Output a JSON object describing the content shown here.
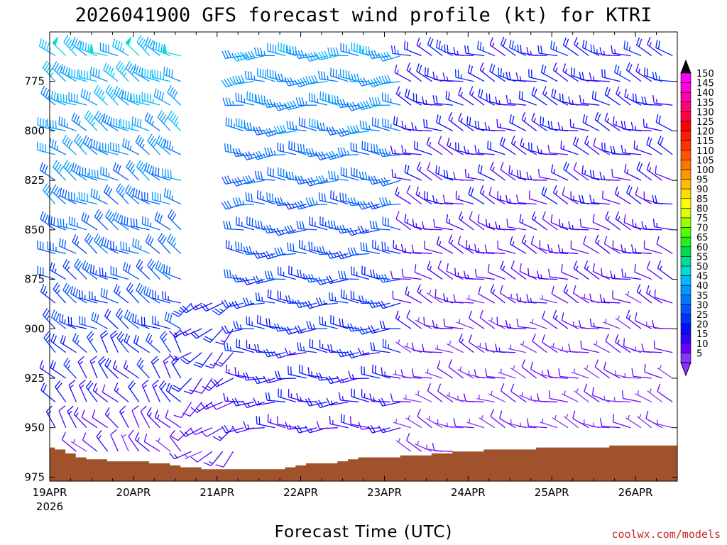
{
  "chart_data": {
    "type": "wind-barb-profile",
    "title": "2026041900 GFS forecast wind profile (kt) for KTRI",
    "xlabel": "Forecast Time (UTC)",
    "ylabel": "",
    "credit": "coolwx.com/models",
    "x_year_label": "2026",
    "x_ticks": [
      "19APR",
      "20APR",
      "21APR",
      "22APR",
      "23APR",
      "24APR",
      "25APR",
      "26APR"
    ],
    "x_range_days": [
      0,
      7.5
    ],
    "y_ticks": [
      775,
      800,
      825,
      850,
      875,
      900,
      925,
      950,
      975
    ],
    "y_range_hpa": [
      750,
      977
    ],
    "levels_hpa": [
      762,
      775,
      787,
      800,
      812,
      825,
      837,
      850,
      862,
      875,
      887,
      900,
      912,
      925,
      937,
      950,
      962
    ],
    "times_days": [
      0,
      0.125,
      0.25,
      0.375,
      0.5,
      0.625,
      0.75,
      0.875,
      1,
      1.125,
      1.25,
      1.375,
      1.5,
      1.625,
      1.75,
      1.875,
      2,
      2.125,
      2.25,
      2.375,
      2.5,
      2.625,
      2.75,
      2.875,
      3,
      3.125,
      3.25,
      3.375,
      3.5,
      3.625,
      3.75,
      3.875,
      4,
      4.125,
      4.25,
      4.375,
      4.5,
      4.625,
      4.75,
      4.875,
      5,
      5.125,
      5.25,
      5.375,
      5.5,
      5.625,
      5.75,
      5.875,
      6,
      6.125,
      6.25,
      6.375,
      6.5,
      6.625,
      6.75,
      6.875,
      7,
      7.125,
      7.25,
      7.375
    ],
    "surface_pressure_hpa": [
      960,
      961,
      963,
      965,
      966,
      966,
      967,
      967,
      967,
      967,
      968,
      968,
      969,
      970,
      970,
      971,
      971,
      971,
      971,
      971,
      971,
      971,
      971,
      970,
      969,
      968,
      968,
      968,
      967,
      966,
      965,
      965,
      965,
      965,
      964,
      964,
      964,
      963,
      963,
      962,
      962,
      962,
      961,
      961,
      961,
      961,
      961,
      960,
      960,
      960,
      960,
      960,
      960,
      960,
      959,
      959,
      959,
      959,
      959,
      959
    ],
    "wind_regimes": [
      {
        "t_from": 0,
        "t_to": 1.6,
        "level_from": 762,
        "level_to": 900,
        "speed_kt": [
          25,
          45
        ],
        "dir_deg": 300
      },
      {
        "t_from": 0,
        "t_to": 1.6,
        "level_from": 900,
        "level_to": 962,
        "speed_kt": [
          10,
          25
        ],
        "dir_deg": 320
      },
      {
        "t_from": 1.6,
        "t_to": 2.2,
        "level_from": 887,
        "level_to": 962,
        "speed_kt": [
          10,
          20
        ],
        "dir_deg": 230
      },
      {
        "t_from": 2.2,
        "t_to": 4.2,
        "level_from": 762,
        "level_to": 950,
        "speed_kt": [
          15,
          40
        ],
        "dir_deg": 270
      },
      {
        "t_from": 4.2,
        "t_to": 7.5,
        "level_from": 762,
        "level_to": 962,
        "speed_kt": [
          5,
          20
        ],
        "dir_deg": 290
      }
    ],
    "colorbar": {
      "labels": [
        150,
        145,
        140,
        135,
        130,
        125,
        120,
        115,
        110,
        105,
        100,
        95,
        90,
        85,
        80,
        75,
        70,
        65,
        60,
        55,
        50,
        45,
        40,
        35,
        30,
        25,
        20,
        15,
        10,
        5
      ],
      "colors": [
        "#ff00ff",
        "#ff00dd",
        "#ff00aa",
        "#ff0077",
        "#ff0044",
        "#ff0000",
        "#ff1a00",
        "#ff3300",
        "#ff5500",
        "#ff7700",
        "#ff9900",
        "#ffbb00",
        "#ffdd00",
        "#ffff00",
        "#ddff00",
        "#99ff00",
        "#55ff00",
        "#22ee22",
        "#00dd55",
        "#00dd99",
        "#00ddcc",
        "#00bbff",
        "#0099ff",
        "#0077ff",
        "#0055ff",
        "#0033ff",
        "#0011ff",
        "#3300ff",
        "#6600ff",
        "#8833ff"
      ]
    },
    "ground_color": "#a0522d"
  }
}
